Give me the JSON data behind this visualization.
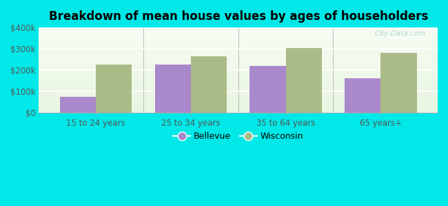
{
  "categories": [
    "15 to 24 years",
    "25 to 34 years",
    "35 to 64 years",
    "65 years+"
  ],
  "bellevue": [
    75000,
    225000,
    220000,
    163000
  ],
  "wisconsin": [
    225000,
    265000,
    305000,
    280000
  ],
  "bellevue_color": "#aa88cc",
  "wisconsin_color": "#aabb88",
  "title": "Breakdown of mean house values by ages of householders",
  "title_fontsize": 12,
  "ylabel_ticks": [
    "$0",
    "$100k",
    "$200k",
    "$300k",
    "$400k"
  ],
  "ytick_vals": [
    0,
    100000,
    200000,
    300000,
    400000
  ],
  "ylim": [
    0,
    400000
  ],
  "background_outer": "#00e8e8",
  "legend_bellevue": "Bellevue",
  "legend_wisconsin": "Wisconsin",
  "bar_width": 0.38,
  "watermark": "City-Data.com"
}
